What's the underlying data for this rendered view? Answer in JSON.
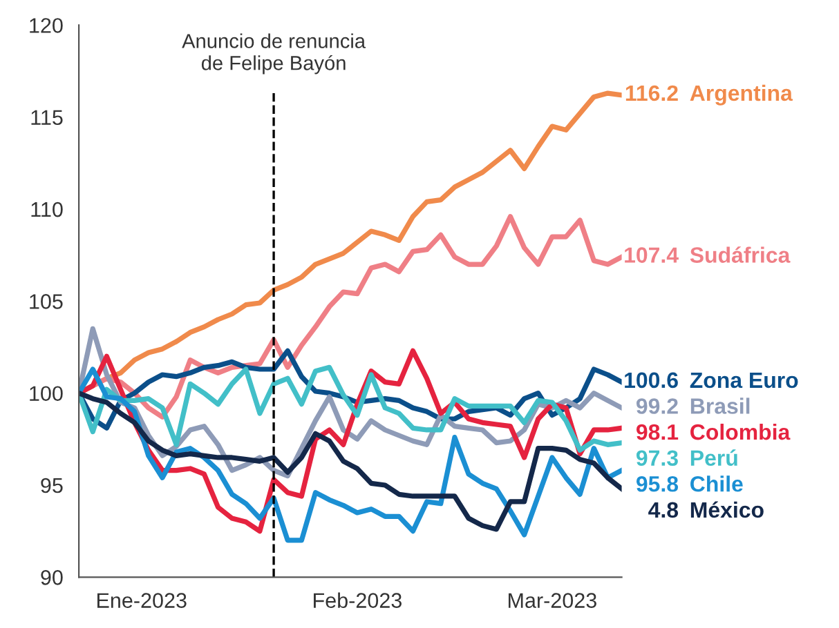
{
  "chart_data": {
    "type": "line",
    "x": [
      "2022-12-23",
      "2022-12-25",
      "2022-12-27",
      "2022-12-29",
      "2022-12-31",
      "2023-01-02",
      "2023-01-04",
      "2023-01-06",
      "2023-01-08",
      "2023-01-10",
      "2023-01-12",
      "2023-01-14",
      "2023-01-16",
      "2023-01-18",
      "2023-01-20",
      "2023-01-22",
      "2023-01-24",
      "2023-01-26",
      "2023-01-28",
      "2023-01-30",
      "2023-02-01",
      "2023-02-03",
      "2023-02-05",
      "2023-02-07",
      "2023-02-09",
      "2023-02-11",
      "2023-02-13",
      "2023-02-15",
      "2023-02-17",
      "2023-02-19",
      "2023-02-21",
      "2023-02-23",
      "2023-02-25",
      "2023-02-27",
      "2023-03-01",
      "2023-03-03",
      "2023-03-05",
      "2023-03-07",
      "2023-03-09",
      "2023-03-11"
    ],
    "series": [
      {
        "name": "Argentina",
        "color": "#f08a4b",
        "value_labels": [
          null,
          null,
          null,
          null,
          null,
          null,
          null,
          null,
          null,
          null,
          null,
          null,
          null,
          null,
          null,
          null,
          null,
          null,
          null,
          null,
          null,
          null,
          null,
          null,
          null,
          null,
          null,
          null,
          null,
          null,
          null,
          null,
          null,
          null,
          null,
          null,
          null,
          null,
          null,
          "116.2"
        ],
        "values": [
          100,
          100.4,
          100.8,
          101.1,
          101.8,
          102.2,
          102.4,
          102.8,
          103.3,
          103.6,
          104.0,
          104.3,
          104.8,
          104.9,
          105.6,
          105.9,
          106.3,
          107.0,
          107.3,
          107.6,
          108.2,
          108.8,
          108.6,
          108.3,
          109.6,
          110.4,
          110.5,
          111.2,
          111.6,
          112.0,
          112.6,
          113.2,
          112.2,
          113.4,
          114.5,
          114.3,
          115.2,
          116.1,
          116.3,
          116.2
        ]
      },
      {
        "name": "Sudáfrica",
        "color": "#ef7f86",
        "value_labels": [
          null,
          null,
          null,
          null,
          null,
          null,
          null,
          null,
          null,
          null,
          null,
          null,
          null,
          null,
          null,
          null,
          null,
          null,
          null,
          null,
          null,
          null,
          null,
          null,
          null,
          null,
          null,
          null,
          null,
          null,
          null,
          null,
          null,
          null,
          null,
          null,
          null,
          null,
          null,
          "107.4"
        ],
        "values": [
          100,
          100.4,
          100.8,
          100.6,
          100.0,
          99.2,
          98.7,
          99.8,
          101.8,
          101.4,
          101.1,
          101.4,
          101.5,
          101.6,
          102.9,
          101.4,
          102.6,
          103.6,
          104.7,
          105.5,
          105.4,
          106.8,
          107.0,
          106.6,
          107.7,
          107.8,
          108.6,
          107.4,
          107.0,
          107.0,
          108.0,
          109.6,
          107.9,
          107.0,
          108.5,
          108.5,
          109.4,
          107.2,
          107.0,
          107.4
        ]
      },
      {
        "name": "Zona Euro",
        "color": "#0b4f8a",
        "value_labels": [
          null,
          null,
          null,
          null,
          null,
          null,
          null,
          null,
          null,
          null,
          null,
          null,
          null,
          null,
          null,
          null,
          null,
          null,
          null,
          null,
          null,
          null,
          null,
          null,
          null,
          null,
          null,
          null,
          null,
          null,
          null,
          null,
          null,
          null,
          null,
          null,
          null,
          null,
          null,
          "100.6"
        ],
        "values": [
          100,
          98.6,
          98.1,
          99.6,
          100,
          100.6,
          101.0,
          100.9,
          101.1,
          101.4,
          101.5,
          101.7,
          101.4,
          101.3,
          101.3,
          102.3,
          100.9,
          100.1,
          100.0,
          99.8,
          99.5,
          99.6,
          99.7,
          99.6,
          99.2,
          99.0,
          98.6,
          98.6,
          99.0,
          99.1,
          99.2,
          98.8,
          99.7,
          100.0,
          98.8,
          99.2,
          99.7,
          101.3,
          101.0,
          100.6
        ]
      },
      {
        "name": "Brasil",
        "color": "#8e9bb7",
        "value_labels": [
          null,
          null,
          null,
          null,
          null,
          null,
          null,
          null,
          null,
          null,
          null,
          null,
          null,
          null,
          null,
          null,
          null,
          null,
          null,
          null,
          null,
          null,
          null,
          null,
          null,
          null,
          null,
          null,
          null,
          null,
          null,
          null,
          null,
          null,
          null,
          null,
          null,
          null,
          null,
          "99.2"
        ],
        "values": [
          100,
          103.5,
          101.0,
          99.5,
          99.2,
          97.7,
          96.6,
          97.1,
          98.0,
          98.2,
          97.2,
          95.8,
          96.1,
          96.5,
          95.8,
          95.5,
          97.0,
          98.5,
          99.8,
          98.0,
          97.5,
          98.5,
          98.0,
          97.7,
          97.4,
          97.2,
          98.8,
          98.2,
          98.1,
          98.0,
          97.3,
          97.4,
          98.0,
          99.4,
          99.2,
          99.6,
          99.2,
          100.0,
          99.6,
          99.2
        ]
      },
      {
        "name": "Colombia",
        "color": "#e5233f",
        "value_labels": [
          null,
          null,
          null,
          null,
          null,
          null,
          null,
          null,
          null,
          null,
          null,
          null,
          null,
          null,
          null,
          null,
          null,
          null,
          null,
          null,
          null,
          null,
          null,
          null,
          null,
          null,
          null,
          null,
          null,
          null,
          null,
          null,
          null,
          null,
          null,
          null,
          null,
          null,
          null,
          "98.1"
        ],
        "values": [
          100,
          100.4,
          102.0,
          100.2,
          98.4,
          96.9,
          95.8,
          95.8,
          95.9,
          95.6,
          93.8,
          93.2,
          93.0,
          92.5,
          95.3,
          94.6,
          94.4,
          97.5,
          98.0,
          97.2,
          99.4,
          101.2,
          100.6,
          100.5,
          102.3,
          100.8,
          98.9,
          99.5,
          98.6,
          98.4,
          98.3,
          98.2,
          96.5,
          98.6,
          99.4,
          99.2,
          96.7,
          98.0,
          98.0,
          98.1
        ]
      },
      {
        "name": "Perú",
        "color": "#42bfc8",
        "value_labels": [
          null,
          null,
          null,
          null,
          null,
          null,
          null,
          null,
          null,
          null,
          null,
          null,
          null,
          null,
          null,
          null,
          null,
          null,
          null,
          null,
          null,
          null,
          null,
          null,
          null,
          null,
          null,
          null,
          null,
          null,
          null,
          null,
          null,
          null,
          null,
          null,
          null,
          null,
          null,
          "97.3"
        ],
        "values": [
          100,
          97.9,
          100.2,
          99.6,
          99.6,
          99.7,
          99.2,
          97.2,
          100.5,
          100.0,
          99.4,
          100.5,
          101.3,
          98.9,
          100.5,
          100.8,
          99.4,
          101.2,
          101.4,
          99.9,
          98.8,
          101.0,
          99.2,
          98.9,
          98.1,
          98.0,
          98.0,
          99.7,
          99.3,
          99.3,
          99.3,
          99.3,
          98.4,
          99.6,
          99.5,
          98.5,
          96.9,
          97.4,
          97.2,
          97.3
        ]
      },
      {
        "name": "Chile",
        "color": "#1b8fd3",
        "value_labels": [
          null,
          null,
          null,
          null,
          null,
          null,
          null,
          null,
          null,
          null,
          null,
          null,
          null,
          null,
          null,
          null,
          null,
          null,
          null,
          null,
          null,
          null,
          null,
          null,
          null,
          null,
          null,
          null,
          null,
          null,
          null,
          null,
          null,
          null,
          null,
          null,
          null,
          null,
          null,
          "95.8"
        ],
        "values": [
          100,
          101.3,
          99.8,
          99.7,
          99.0,
          96.6,
          95.4,
          96.8,
          97.0,
          96.5,
          95.8,
          94.5,
          94.0,
          93.2,
          94.3,
          92.0,
          92.0,
          94.6,
          94.2,
          93.9,
          93.5,
          93.7,
          93.3,
          93.3,
          92.5,
          94.1,
          94.0,
          97.6,
          95.6,
          95.1,
          94.8,
          93.6,
          92.3,
          94.4,
          96.5,
          95.4,
          94.5,
          97.0,
          95.4,
          95.8
        ]
      },
      {
        "name": "México",
        "color": "#14284a",
        "value_labels": [
          null,
          null,
          null,
          null,
          null,
          null,
          null,
          null,
          null,
          null,
          null,
          null,
          null,
          null,
          null,
          null,
          null,
          null,
          null,
          null,
          null,
          null,
          null,
          null,
          null,
          null,
          null,
          null,
          null,
          null,
          null,
          null,
          null,
          null,
          null,
          null,
          null,
          null,
          null,
          null
        ],
        "values": [
          100,
          99.7,
          99.5,
          98.9,
          98.4,
          97.4,
          96.9,
          96.6,
          96.7,
          96.6,
          96.5,
          96.5,
          96.4,
          96.3,
          96.5,
          95.7,
          96.5,
          97.8,
          97.4,
          96.3,
          95.9,
          95.1,
          95.0,
          94.5,
          94.4,
          94.4,
          94.4,
          94.4,
          93.2,
          92.8,
          92.6,
          94.1,
          94.1,
          97.0,
          97.0,
          96.9,
          96.4,
          96.2,
          95.4,
          94.8
        ]
      }
    ],
    "xlim": [
      "2022-12-23",
      "2023-03-11"
    ],
    "xticks": [
      {
        "value": "2023-01-01",
        "label": "Ene-2023"
      },
      {
        "value": "2023-02-01",
        "label": "Feb-2023"
      },
      {
        "value": "2023-03-01",
        "label": "Mar-2023"
      }
    ],
    "ylim": [
      90,
      120
    ],
    "yticks": [
      90,
      95,
      100,
      105,
      110,
      115,
      120
    ],
    "ref_lines": [
      {
        "axis": "x",
        "value": "2023-01-20",
        "label": "Anuncio de renuncia\nde Felipe Bayón",
        "color": "#000000",
        "line_style": "dashed"
      }
    ],
    "annotations": [
      "4.8"
    ],
    "grid": false,
    "legend": false,
    "marker": "none",
    "line_style": "solid"
  }
}
